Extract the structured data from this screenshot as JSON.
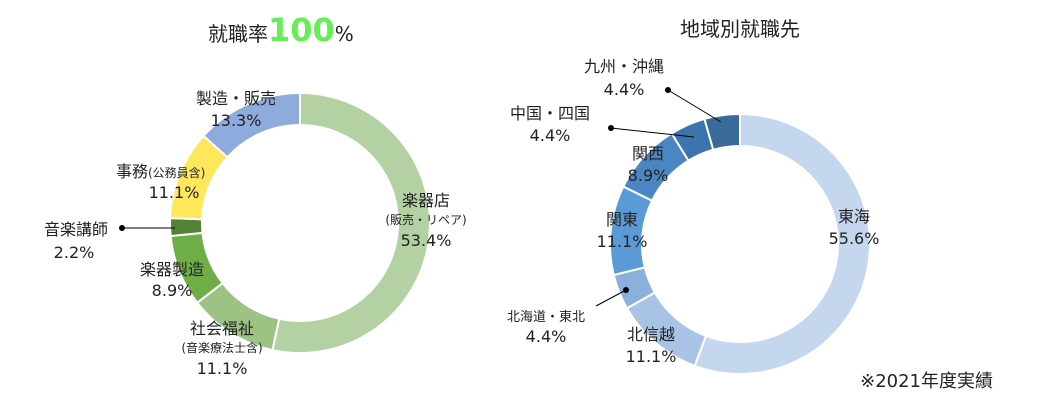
{
  "chart_data": [
    {
      "type": "donut",
      "title_prefix": "就職率",
      "title_value": "100",
      "title_unit": "%",
      "slices": [
        {
          "label": "楽器店",
          "sublabel": "(販売・リペア)",
          "value_text": "53.4%",
          "value": 53.4,
          "color": "#b3d1a3"
        },
        {
          "label": "社会福祉",
          "sublabel": "(音楽療法士含)",
          "value_text": "11.1%",
          "value": 11.1,
          "color": "#9cc284"
        },
        {
          "label": "楽器製造",
          "sublabel": "",
          "value_text": "8.9%",
          "value": 8.9,
          "color": "#6fad47"
        },
        {
          "label": "音楽講師",
          "sublabel": "",
          "value_text": "2.2%",
          "value": 2.2,
          "color": "#548235"
        },
        {
          "label": "事務",
          "sublabel": "(公務員含)",
          "value_text": "11.1%",
          "value": 11.1,
          "color": "#fee75a"
        },
        {
          "label": "製造・販売",
          "sublabel": "",
          "value_text": "13.3%",
          "value": 13.3,
          "color": "#8faadc"
        }
      ]
    },
    {
      "type": "donut",
      "title": "地域別就職先",
      "slices": [
        {
          "label": "東海",
          "value_text": "55.6%",
          "value": 55.6,
          "color": "#c5d7ee"
        },
        {
          "label": "北信越",
          "value_text": "11.1%",
          "value": 11.1,
          "color": "#a9c3e6"
        },
        {
          "label": "北海道・東北",
          "value_text": "4.4%",
          "value": 4.4,
          "color": "#8cb0dc"
        },
        {
          "label": "関東",
          "value_text": "11.1%",
          "value": 11.1,
          "color": "#5b9bd5"
        },
        {
          "label": "関西",
          "value_text": "8.9%",
          "value": 8.9,
          "color": "#4a86c1"
        },
        {
          "label": "中国・四国",
          "value_text": "4.4%",
          "value": 4.4,
          "color": "#3c75ae"
        },
        {
          "label": "九州・沖縄",
          "value_text": "4.4%",
          "value": 4.4,
          "color": "#386b99"
        }
      ]
    }
  ],
  "footnote": "※2021年度実績",
  "colors": {
    "title_accent": "#66ee55",
    "separator": "#ffffff"
  }
}
